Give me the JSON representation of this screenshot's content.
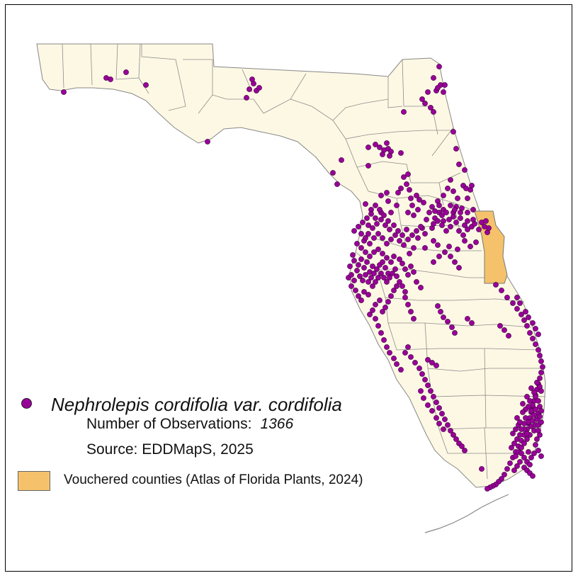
{
  "legend": {
    "species": "Nephrolepis cordifolia var. cordifolia",
    "observations_label": "Number of Observations:",
    "observations_value": "1366",
    "source": "Source: EDDMapS, 2025",
    "vouchered_label": "Vouchered counties (Atlas of Florida Plants, 2024)"
  },
  "colors": {
    "land": "#fdf8e4",
    "county_border": "#8c8c8c",
    "vouchered_county": "#f5c26b",
    "observation_dot": "#990099",
    "observation_outline": "#3a003a"
  },
  "map": {
    "region": "Florida",
    "vouchered_counties": [
      "Brevard"
    ],
    "observation_clusters": [
      {
        "area": "Panhandle west",
        "count": 5
      },
      {
        "area": "Tallahassee area",
        "count": 6
      },
      {
        "area": "Northeast / Jacksonville",
        "count": 20
      },
      {
        "area": "Gainesville",
        "count": 14
      },
      {
        "area": "Ocala / Lake County",
        "count": 40
      },
      {
        "area": "Orlando metro",
        "count": 80
      },
      {
        "area": "Tampa Bay",
        "count": 90
      },
      {
        "area": "Lakeland / Polk",
        "count": 40
      },
      {
        "area": "Atlantic coast",
        "count": 50
      },
      {
        "area": "Southwest coast",
        "count": 40
      },
      {
        "area": "Southeast metro",
        "count": 70
      }
    ]
  }
}
